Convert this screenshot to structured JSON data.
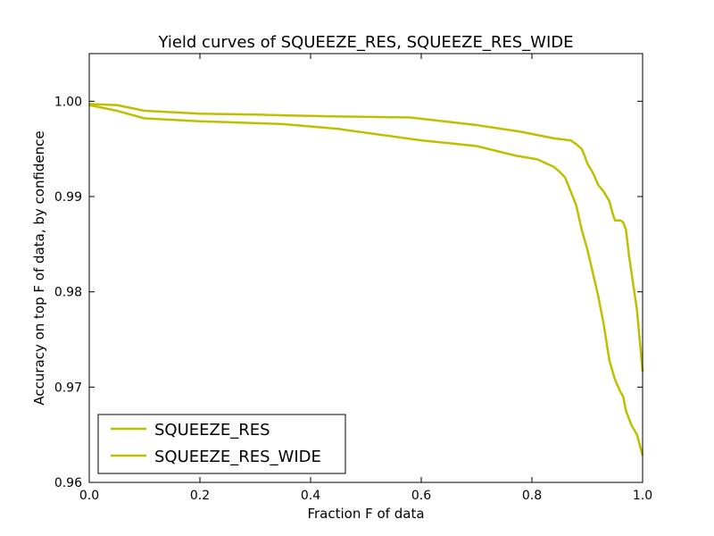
{
  "chart_data": {
    "type": "line",
    "title": "Yield curves of SQUEEZE_RES, SQUEEZE_RES_WIDE",
    "xlabel": "Fraction F of data",
    "ylabel": "Accuracy on top F of data, by confidence",
    "xlim": [
      0.0,
      1.0
    ],
    "ylim": [
      0.96,
      1.005
    ],
    "xticks": [
      0.0,
      0.2,
      0.4,
      0.6,
      0.8,
      1.0
    ],
    "xtick_labels": [
      "0.0",
      "0.2",
      "0.4",
      "0.6",
      "0.8",
      "1.0"
    ],
    "yticks": [
      0.96,
      0.97,
      0.98,
      0.99,
      1.0
    ],
    "ytick_labels": [
      "0.96",
      "0.97",
      "0.98",
      "0.99",
      "1.00"
    ],
    "grid": false,
    "legend_position": "lower-left",
    "series": [
      {
        "name": "SQUEEZE_RES",
        "color": "#bfbf00",
        "x": [
          0.0,
          0.05,
          0.1,
          0.2,
          0.3,
          0.36,
          0.45,
          0.58,
          0.7,
          0.78,
          0.84,
          0.87,
          0.88,
          0.89,
          0.895,
          0.9,
          0.91,
          0.92,
          0.93,
          0.94,
          0.945,
          0.95,
          0.96,
          0.965,
          0.97,
          0.975,
          0.98,
          0.985,
          0.99,
          1.0
        ],
        "y": [
          0.9997,
          0.9996,
          0.999,
          0.9987,
          0.9986,
          0.9985,
          0.9984,
          0.9983,
          0.9975,
          0.9968,
          0.9961,
          0.9959,
          0.9955,
          0.995,
          0.9943,
          0.9935,
          0.9925,
          0.9912,
          0.9905,
          0.9895,
          0.9884,
          0.9875,
          0.9875,
          0.9873,
          0.9865,
          0.984,
          0.982,
          0.98,
          0.978,
          0.9716
        ]
      },
      {
        "name": "SQUEEZE_RES_WIDE",
        "color": "#bfbf00",
        "x": [
          0.0,
          0.05,
          0.1,
          0.2,
          0.35,
          0.45,
          0.6,
          0.7,
          0.77,
          0.81,
          0.84,
          0.85,
          0.86,
          0.88,
          0.89,
          0.9,
          0.91,
          0.92,
          0.93,
          0.94,
          0.95,
          0.96,
          0.965,
          0.97,
          0.98,
          0.99,
          1.0
        ],
        "y": [
          0.9996,
          0.999,
          0.9982,
          0.9979,
          0.9976,
          0.9971,
          0.9959,
          0.9953,
          0.9943,
          0.9939,
          0.9931,
          0.9926,
          0.992,
          0.9891,
          0.9865,
          0.9845,
          0.982,
          0.9795,
          0.9765,
          0.9728,
          0.9708,
          0.9695,
          0.969,
          0.9675,
          0.966,
          0.965,
          0.9628
        ]
      }
    ]
  }
}
